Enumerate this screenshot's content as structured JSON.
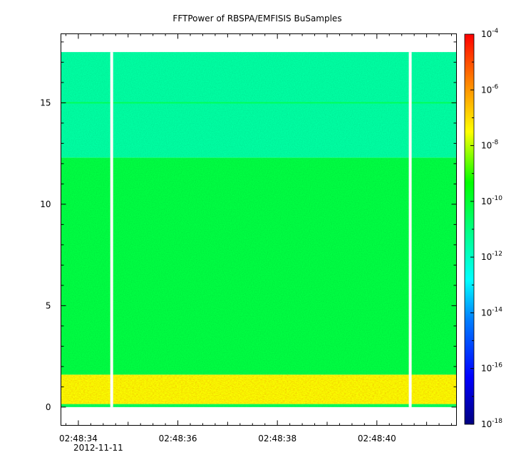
{
  "chart_data": {
    "type": "heatmap",
    "title": "FFTPower of RBSPA/EMFISIS  BuSamples",
    "xlabel": "",
    "ylabel": "",
    "x_axis": {
      "tick_labels": [
        "02:48:34",
        "02:48:36",
        "02:48:38",
        "02:48:40"
      ],
      "tick_values_s": [
        34,
        36,
        38,
        40
      ],
      "date_label": "2012-11-11",
      "range_s": [
        33.65,
        41.6
      ]
    },
    "y_axis": {
      "tick_labels": [
        "0",
        "5",
        "10",
        "15"
      ],
      "tick_values": [
        0,
        5,
        10,
        15
      ],
      "ylim": [
        -0.9,
        18.4
      ]
    },
    "colorbar": {
      "scale": "log",
      "range": [
        1e-18,
        0.0001
      ],
      "tick_mantissa": "10",
      "tick_exponents": [
        "-18",
        "-16",
        "-14",
        "-12",
        "-10",
        "-8",
        "-6",
        "-4"
      ],
      "colormap": "rainbow"
    },
    "data_coverage": {
      "y_range": [
        0,
        17.5
      ],
      "gaps_x_s": [
        34.67,
        40.67
      ]
    },
    "bands": [
      {
        "y_range": [
          0,
          0.15
        ],
        "level_log10": -10.5
      },
      {
        "y_range": [
          0.15,
          1.6
        ],
        "level_log10": -7.5
      },
      {
        "y_range": [
          1.6,
          12.3
        ],
        "level_log10": -10.2
      },
      {
        "y_range": [
          12.3,
          17.5
        ],
        "level_log10": -11.5
      }
    ],
    "lines": [
      {
        "y": 15.0,
        "level_log10": -10.5
      }
    ]
  }
}
